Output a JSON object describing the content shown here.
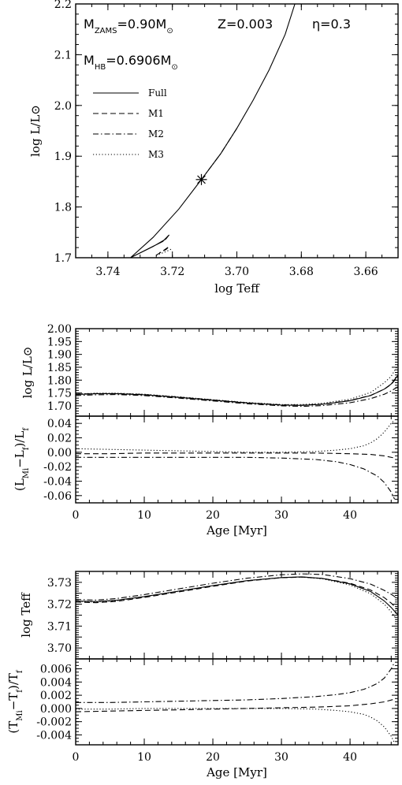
{
  "chart_data": [
    {
      "id": "hr",
      "type": "line",
      "xlabel": "log Teff",
      "ylabel": "log L/L⊙",
      "xlim": [
        3.75,
        3.65
      ],
      "ylim": [
        1.7,
        2.2
      ],
      "xticks": [
        "3.74",
        "3.72",
        "3.70",
        "3.68",
        "3.66"
      ],
      "yticks": [
        "1.7",
        "1.8",
        "1.9",
        "2.0",
        "2.1",
        "2.2"
      ],
      "annotations": {
        "mzams": "M_ZAMS=0.90M⊙",
        "z": "Z=0.003",
        "eta": "η=0.3",
        "mhb": "M_HB=0.6906M⊙"
      },
      "legend": [
        "Full",
        "M1",
        "M2",
        "M3"
      ],
      "legend_position": "upper-left",
      "marker": {
        "symbol": "asterisk",
        "x": 3.711,
        "y": 1.854
      },
      "series": [
        {
          "name": "Full",
          "style": "solid",
          "x": [
            3.733,
            3.726,
            3.722,
            3.721,
            3.723,
            3.733,
            3.726,
            3.718,
            3.711,
            3.705,
            3.7,
            3.695,
            3.69,
            3.685,
            3.682
          ],
          "y": [
            1.7,
            1.722,
            1.737,
            1.745,
            1.732,
            1.7,
            1.74,
            1.796,
            1.854,
            1.905,
            1.955,
            2.01,
            2.07,
            2.14,
            2.2
          ]
        },
        {
          "name": "M1",
          "style": "dashed",
          "x": [
            3.725,
            3.723,
            3.721,
            3.722,
            3.724
          ],
          "y": [
            1.705,
            1.713,
            1.722,
            1.716,
            1.71
          ]
        },
        {
          "name": "M2",
          "style": "dashdot",
          "x": [
            3.711,
            3.705,
            3.7
          ],
          "y": [
            1.854,
            1.905,
            1.955
          ]
        },
        {
          "name": "M3",
          "style": "dotted",
          "x": [
            3.725,
            3.722,
            3.72
          ],
          "y": [
            1.705,
            1.712,
            1.718
          ]
        }
      ]
    },
    {
      "id": "lum-age",
      "type": "line",
      "xlabel": "",
      "ylabel": "log L/L⊙",
      "xlim": [
        0,
        47
      ],
      "ylim": [
        1.66,
        2.0
      ],
      "yticks": [
        "1.70",
        "1.75",
        "1.80",
        "1.85",
        "1.90",
        "1.95",
        "2.00"
      ],
      "series": [
        {
          "name": "Full",
          "style": "solid",
          "x": [
            0,
            3,
            6,
            10,
            15,
            20,
            25,
            30,
            33,
            36,
            40,
            43,
            45,
            46,
            47
          ],
          "y": [
            1.744,
            1.747,
            1.747,
            1.743,
            1.733,
            1.722,
            1.711,
            1.703,
            1.702,
            1.706,
            1.72,
            1.74,
            1.765,
            1.785,
            1.82
          ]
        },
        {
          "name": "M1",
          "style": "dashed",
          "x": [
            0,
            3,
            6,
            10,
            15,
            20,
            25,
            30,
            33,
            36,
            40,
            43,
            45,
            46,
            47
          ],
          "y": [
            1.745,
            1.748,
            1.748,
            1.744,
            1.734,
            1.723,
            1.712,
            1.704,
            1.703,
            1.707,
            1.721,
            1.741,
            1.765,
            1.783,
            1.815
          ]
        },
        {
          "name": "M2",
          "style": "dashdot",
          "x": [
            0,
            3,
            6,
            10,
            15,
            20,
            25,
            30,
            33,
            36,
            40,
            43,
            45,
            46,
            47
          ],
          "y": [
            1.74,
            1.743,
            1.744,
            1.74,
            1.73,
            1.719,
            1.708,
            1.7,
            1.698,
            1.701,
            1.712,
            1.728,
            1.745,
            1.758,
            1.775
          ]
        },
        {
          "name": "M3",
          "style": "dotted",
          "x": [
            0,
            3,
            6,
            10,
            15,
            20,
            25,
            30,
            33,
            36,
            40,
            43,
            45,
            46,
            47
          ],
          "y": [
            1.746,
            1.749,
            1.749,
            1.745,
            1.735,
            1.724,
            1.713,
            1.705,
            1.705,
            1.71,
            1.726,
            1.752,
            1.79,
            1.815,
            1.86
          ]
        }
      ]
    },
    {
      "id": "lum-diff",
      "type": "line",
      "xlabel": "Age [Myr]",
      "ylabel": "(L_Mi−L_f)/L_f",
      "xlim": [
        0,
        47
      ],
      "ylim": [
        -0.07,
        0.05
      ],
      "xticks": [
        "0",
        "10",
        "20",
        "30",
        "40"
      ],
      "yticks": [
        "-0.06",
        "-0.04",
        "-0.02",
        "0.00",
        "0.02",
        "0.04"
      ],
      "series": [
        {
          "name": "M1",
          "style": "dashed",
          "x": [
            0,
            5,
            10,
            15,
            20,
            25,
            30,
            35,
            40,
            43,
            45,
            46.5
          ],
          "y": [
            -0.002,
            -0.002,
            -0.001,
            -0.001,
            -0.001,
            -0.001,
            -0.001,
            -0.001,
            -0.002,
            -0.003,
            -0.005,
            -0.008
          ]
        },
        {
          "name": "M2",
          "style": "dashdot",
          "x": [
            0,
            5,
            10,
            15,
            20,
            25,
            30,
            35,
            38,
            40,
            42,
            44,
            45,
            46,
            46.5
          ],
          "y": [
            -0.007,
            -0.007,
            -0.007,
            -0.007,
            -0.007,
            -0.007,
            -0.008,
            -0.01,
            -0.013,
            -0.017,
            -0.023,
            -0.033,
            -0.042,
            -0.055,
            -0.065
          ]
        },
        {
          "name": "M3",
          "style": "dotted",
          "x": [
            0,
            5,
            10,
            15,
            20,
            25,
            30,
            35,
            38,
            40,
            42,
            43,
            44,
            45,
            46,
            46.5
          ],
          "y": [
            0.005,
            0.004,
            0.003,
            0.002,
            0.001,
            0.0,
            0.0,
            0.001,
            0.003,
            0.005,
            0.009,
            0.013,
            0.019,
            0.028,
            0.04,
            0.045
          ]
        }
      ]
    },
    {
      "id": "teff-age",
      "type": "line",
      "xlabel": "",
      "ylabel": "log Teff",
      "xlim": [
        0,
        47
      ],
      "ylim": [
        3.695,
        3.735
      ],
      "yticks": [
        "3.700",
        "3.705",
        "3.710",
        "3.715",
        "3.720",
        "3.725",
        "3.730"
      ],
      "ytick_labels": [
        "3.70",
        "",
        "3.71",
        "",
        "3.72",
        "",
        "3.73"
      ],
      "series": [
        {
          "name": "Full",
          "style": "solid",
          "x": [
            0,
            3,
            6,
            10,
            15,
            20,
            25,
            30,
            33,
            36,
            40,
            43,
            45,
            46,
            47
          ],
          "y": [
            3.7215,
            3.7212,
            3.7218,
            3.7235,
            3.726,
            3.7285,
            3.7308,
            3.7322,
            3.7325,
            3.7318,
            3.7293,
            3.7258,
            3.7215,
            3.7185,
            3.715
          ]
        },
        {
          "name": "M1",
          "style": "dashed",
          "x": [
            0,
            3,
            6,
            10,
            15,
            20,
            25,
            30,
            33,
            36,
            40,
            43,
            45,
            46,
            47
          ],
          "y": [
            3.721,
            3.7207,
            3.7213,
            3.7231,
            3.7256,
            3.7282,
            3.7306,
            3.7321,
            3.7324,
            3.7318,
            3.7296,
            3.7265,
            3.723,
            3.7205,
            3.7175
          ]
        },
        {
          "name": "M2",
          "style": "dashdot",
          "x": [
            0,
            3,
            6,
            10,
            15,
            20,
            25,
            30,
            33,
            36,
            40,
            43,
            45,
            46,
            47
          ],
          "y": [
            3.7222,
            3.7219,
            3.7226,
            3.7244,
            3.727,
            3.7296,
            3.7319,
            3.7335,
            3.7339,
            3.7336,
            3.7317,
            3.7292,
            3.7263,
            3.7245,
            3.7225
          ]
        },
        {
          "name": "M3",
          "style": "dotted",
          "x": [
            0,
            3,
            6,
            10,
            15,
            20,
            25,
            30,
            33,
            36,
            40,
            43,
            45,
            46,
            47
          ],
          "y": [
            3.7213,
            3.721,
            3.7216,
            3.7234,
            3.7259,
            3.7285,
            3.7308,
            3.7322,
            3.7324,
            3.7316,
            3.7288,
            3.7248,
            3.72,
            3.7165,
            3.712
          ]
        }
      ]
    },
    {
      "id": "teff-diff",
      "type": "line",
      "xlabel": "Age [Myr]",
      "ylabel": "(T_Mi−T_f)/T_f",
      "xlim": [
        0,
        47
      ],
      "ylim": [
        -0.0055,
        0.0075
      ],
      "xticks": [
        "0",
        "10",
        "20",
        "30",
        "40"
      ],
      "yticks": [
        "-0.004",
        "-0.002",
        "0.000",
        "0.002",
        "0.004",
        "0.006"
      ],
      "series": [
        {
          "name": "M1",
          "style": "dashed",
          "x": [
            0,
            5,
            10,
            15,
            20,
            25,
            30,
            35,
            40,
            43,
            45,
            46.5
          ],
          "y": [
            -0.0005,
            -0.0004,
            -0.0003,
            -0.0002,
            -0.0001,
            0.0,
            0.0001,
            0.0002,
            0.0004,
            0.0007,
            0.001,
            0.0014
          ]
        },
        {
          "name": "M2",
          "style": "dashdot",
          "x": [
            0,
            5,
            10,
            15,
            20,
            25,
            30,
            35,
            38,
            40,
            42,
            43,
            44,
            45,
            46,
            46.5
          ],
          "y": [
            0.0009,
            0.0009,
            0.001,
            0.0011,
            0.0012,
            0.0013,
            0.0015,
            0.0018,
            0.0021,
            0.0024,
            0.0029,
            0.0033,
            0.0038,
            0.0046,
            0.006,
            0.007
          ]
        },
        {
          "name": "M3",
          "style": "dotted",
          "x": [
            0,
            5,
            10,
            15,
            20,
            25,
            30,
            35,
            38,
            40,
            42,
            43,
            44,
            45,
            46,
            46.5
          ],
          "y": [
            -0.0001,
            -0.0001,
            0.0,
            0.0,
            0.0,
            0.0,
            0.0,
            -0.0001,
            -0.0003,
            -0.0005,
            -0.0009,
            -0.0013,
            -0.0019,
            -0.0028,
            -0.0042,
            -0.0052
          ]
        }
      ]
    }
  ]
}
